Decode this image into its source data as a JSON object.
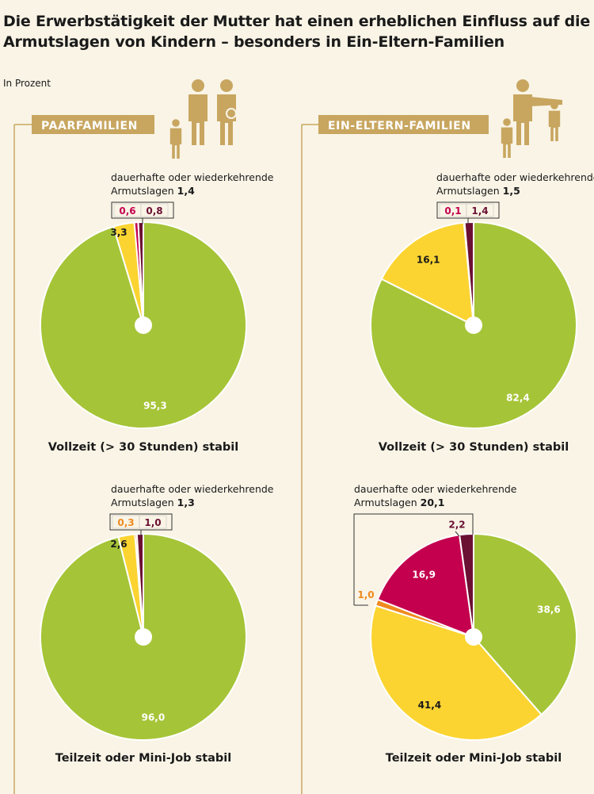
{
  "title_line1": "Die Erwerbstätigkeit der Mutter hat einen erheblichen Einfluss auf die",
  "title_line2": "Armutslagen von Kindern – besonders in Ein-Eltern-Familien",
  "unit": "In Prozent",
  "colors": {
    "background": "#f9f4e6",
    "green": "#a6c437",
    "yellow": "#fbd431",
    "orange": "#ef8a1f",
    "crimson": "#c4004e",
    "dark_red": "#6b1033",
    "gold": "#c8a660"
  },
  "icons": [
    "family-couple-icon",
    "single-parent-icon"
  ],
  "chart_data": [
    {
      "type": "pie",
      "group": "PAARFAMILIEN",
      "subtitle": "Vollzeit (> 30 Stunden) stabil",
      "annotation": [
        "dauerhafte oder wiederkehrende",
        "Armutslagen",
        "1,4"
      ],
      "slices": [
        {
          "label": "95,3",
          "value": 95.3,
          "color": "#a6c437"
        },
        {
          "label": "3,3",
          "value": 3.3,
          "color": "#fbd431"
        },
        {
          "label": "0,6",
          "value": 0.6,
          "color": "#c4004e"
        },
        {
          "label": "0,8",
          "value": 0.8,
          "color": "#6b1033"
        }
      ]
    },
    {
      "type": "pie",
      "group": "EIN-ELTERN-FAMILIEN",
      "subtitle": "Vollzeit (> 30 Stunden) stabil",
      "annotation": [
        "dauerhafte oder wiederkehrende",
        "Armutslagen",
        "1,5"
      ],
      "slices": [
        {
          "label": "82,4",
          "value": 82.4,
          "color": "#a6c437"
        },
        {
          "label": "16,1",
          "value": 16.1,
          "color": "#fbd431"
        },
        {
          "label": "0,1",
          "value": 0.1,
          "color": "#c4004e"
        },
        {
          "label": "1,4",
          "value": 1.4,
          "color": "#6b1033"
        }
      ]
    },
    {
      "type": "pie",
      "group": "PAARFAMILIEN",
      "subtitle": "Teilzeit oder Mini-Job stabil",
      "annotation": [
        "dauerhafte oder wiederkehrende",
        "Armutslagen",
        "1,3"
      ],
      "slices": [
        {
          "label": "96,0",
          "value": 96.0,
          "color": "#a6c437"
        },
        {
          "label": "2,6",
          "value": 2.6,
          "color": "#fbd431"
        },
        {
          "label": "0,3",
          "value": 0.3,
          "color": "#ef8a1f"
        },
        {
          "label": "1,0",
          "value": 1.0,
          "color": "#6b1033"
        }
      ]
    },
    {
      "type": "pie",
      "group": "EIN-ELTERN-FAMILIEN",
      "subtitle": "Teilzeit oder Mini-Job stabil",
      "annotation": [
        "dauerhafte oder wiederkehrende",
        "Armutslagen",
        "20,1"
      ],
      "slices": [
        {
          "label": "38,6",
          "value": 38.6,
          "color": "#a6c437"
        },
        {
          "label": "41,4",
          "value": 41.4,
          "color": "#fbd431"
        },
        {
          "label": "1,0",
          "value": 1.0,
          "color": "#ef8a1f"
        },
        {
          "label": "16,9",
          "value": 16.9,
          "color": "#c4004e"
        },
        {
          "label": "2,2",
          "value": 2.2,
          "color": "#6b1033"
        }
      ]
    }
  ]
}
